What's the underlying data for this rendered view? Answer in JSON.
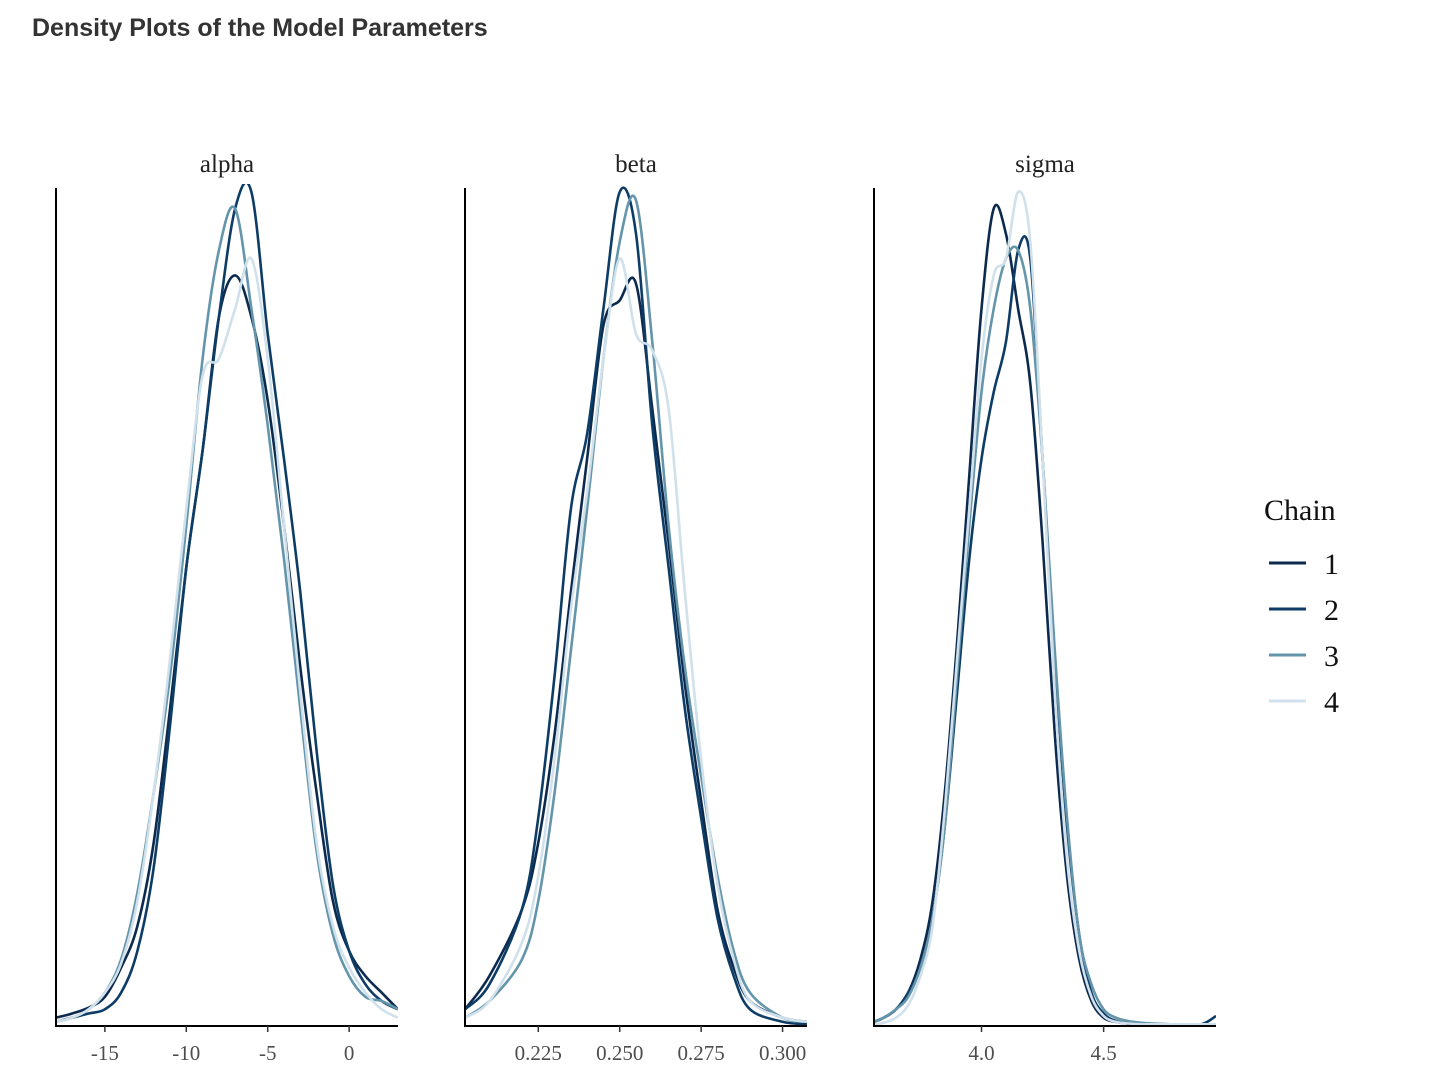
{
  "title": "Density Plots of the Model Parameters",
  "legend": {
    "title": "Chain",
    "placement": "right",
    "items": [
      {
        "label": "1",
        "color": "#0c2a4e"
      },
      {
        "label": "2",
        "color": "#0d3d66"
      },
      {
        "label": "3",
        "color": "#6495ab"
      },
      {
        "label": "4",
        "color": "#d1e1eb"
      }
    ]
  },
  "chart_data": [
    {
      "type": "line",
      "facet": "alpha",
      "xlim": [
        -18,
        3
      ],
      "xticks": [
        -15,
        -10,
        -5,
        0
      ],
      "xtick_labels": [
        "-15",
        "-10",
        "-5",
        "0"
      ],
      "ylim": [
        0,
        1
      ],
      "grid": false,
      "series": [
        {
          "name": "1",
          "x": [
            -18,
            -17,
            -16,
            -15,
            -14,
            -13,
            -12,
            -11,
            -10,
            -9,
            -8,
            -7,
            -6,
            -5,
            -4,
            -3,
            -2,
            -1,
            0,
            1,
            2,
            3
          ],
          "y": [
            0.01,
            0.015,
            0.022,
            0.035,
            0.07,
            0.12,
            0.22,
            0.38,
            0.55,
            0.69,
            0.85,
            0.9,
            0.85,
            0.75,
            0.6,
            0.43,
            0.28,
            0.15,
            0.09,
            0.06,
            0.04,
            0.02
          ]
        },
        {
          "name": "2",
          "x": [
            -18,
            -17,
            -16,
            -15,
            -14,
            -13,
            -12,
            -11,
            -10,
            -9,
            -8,
            -7,
            -6,
            -5,
            -4,
            -3,
            -2,
            -1,
            0,
            1,
            2,
            3
          ],
          "y": [
            0.005,
            0.01,
            0.015,
            0.02,
            0.04,
            0.09,
            0.19,
            0.36,
            0.55,
            0.69,
            0.85,
            0.98,
            1.0,
            0.83,
            0.68,
            0.52,
            0.33,
            0.17,
            0.09,
            0.05,
            0.03,
            0.02
          ]
        },
        {
          "name": "3",
          "x": [
            -18,
            -17,
            -16,
            -15,
            -14,
            -13,
            -12,
            -11,
            -10,
            -9,
            -8,
            -7,
            -6,
            -5,
            -4,
            -3,
            -2,
            -1,
            0,
            1,
            2,
            3
          ],
          "y": [
            0.005,
            0.01,
            0.02,
            0.04,
            0.08,
            0.16,
            0.28,
            0.42,
            0.6,
            0.8,
            0.93,
            0.98,
            0.86,
            0.72,
            0.56,
            0.38,
            0.21,
            0.11,
            0.06,
            0.035,
            0.03,
            0.02
          ]
        },
        {
          "name": "4",
          "x": [
            -18,
            -17,
            -16,
            -15,
            -14,
            -13,
            -12,
            -11,
            -10,
            -9,
            -8,
            -7,
            -6,
            -5,
            -4,
            -3,
            -2,
            -1,
            0,
            1,
            2,
            3
          ],
          "y": [
            0.005,
            0.01,
            0.02,
            0.04,
            0.075,
            0.15,
            0.28,
            0.44,
            0.62,
            0.78,
            0.8,
            0.86,
            0.92,
            0.8,
            0.6,
            0.4,
            0.22,
            0.12,
            0.07,
            0.04,
            0.02,
            0.01
          ]
        }
      ]
    },
    {
      "type": "line",
      "facet": "beta",
      "xlim": [
        0.2025,
        0.3075
      ],
      "xticks": [
        0.225,
        0.25,
        0.275,
        0.3
      ],
      "xtick_labels": [
        "0.225",
        "0.250",
        "0.275",
        "0.300"
      ],
      "ylim": [
        0,
        1
      ],
      "grid": false,
      "series": [
        {
          "name": "1",
          "x": [
            0.2025,
            0.21,
            0.22,
            0.225,
            0.23,
            0.235,
            0.24,
            0.245,
            0.25,
            0.255,
            0.26,
            0.265,
            0.27,
            0.275,
            0.28,
            0.285,
            0.29,
            0.3,
            0.3075
          ],
          "y": [
            0.02,
            0.06,
            0.14,
            0.22,
            0.35,
            0.52,
            0.68,
            0.84,
            0.87,
            0.89,
            0.74,
            0.58,
            0.41,
            0.27,
            0.14,
            0.07,
            0.03,
            0.01,
            0.005
          ]
        },
        {
          "name": "2",
          "x": [
            0.2025,
            0.21,
            0.22,
            0.225,
            0.23,
            0.235,
            0.24,
            0.245,
            0.25,
            0.255,
            0.26,
            0.265,
            0.27,
            0.275,
            0.28,
            0.285,
            0.29,
            0.3,
            0.3075
          ],
          "y": [
            0.02,
            0.05,
            0.14,
            0.25,
            0.42,
            0.62,
            0.71,
            0.86,
            1.0,
            0.95,
            0.72,
            0.55,
            0.38,
            0.25,
            0.13,
            0.06,
            0.02,
            0.005,
            0.002
          ]
        },
        {
          "name": "3",
          "x": [
            0.2025,
            0.21,
            0.22,
            0.225,
            0.23,
            0.235,
            0.24,
            0.245,
            0.25,
            0.255,
            0.26,
            0.265,
            0.27,
            0.275,
            0.28,
            0.285,
            0.29,
            0.3,
            0.3075
          ],
          "y": [
            0.01,
            0.03,
            0.08,
            0.15,
            0.28,
            0.45,
            0.62,
            0.8,
            0.94,
            0.99,
            0.82,
            0.6,
            0.43,
            0.3,
            0.18,
            0.09,
            0.04,
            0.01,
            0.005
          ]
        },
        {
          "name": "4",
          "x": [
            0.2025,
            0.21,
            0.22,
            0.225,
            0.23,
            0.235,
            0.24,
            0.245,
            0.25,
            0.255,
            0.26,
            0.265,
            0.27,
            0.275,
            0.28,
            0.285,
            0.29,
            0.3,
            0.3075
          ],
          "y": [
            0.01,
            0.03,
            0.1,
            0.18,
            0.32,
            0.5,
            0.64,
            0.8,
            0.92,
            0.83,
            0.81,
            0.74,
            0.52,
            0.32,
            0.17,
            0.08,
            0.03,
            0.01,
            0.005
          ]
        }
      ]
    },
    {
      "type": "line",
      "facet": "sigma",
      "xlim": [
        3.56,
        4.96
      ],
      "xticks": [
        4.0,
        4.5
      ],
      "xtick_labels": [
        "4.0",
        "4.5"
      ],
      "ylim": [
        0,
        1
      ],
      "grid": false,
      "series": [
        {
          "name": "1",
          "x": [
            3.56,
            3.6,
            3.65,
            3.7,
            3.75,
            3.8,
            3.85,
            3.9,
            3.95,
            4.0,
            4.05,
            4.1,
            4.15,
            4.2,
            4.25,
            4.3,
            4.35,
            4.4,
            4.45,
            4.5,
            4.55,
            4.6,
            4.65,
            4.7,
            4.8,
            4.9,
            4.96
          ],
          "y": [
            0.005,
            0.01,
            0.02,
            0.04,
            0.08,
            0.15,
            0.28,
            0.46,
            0.66,
            0.86,
            0.98,
            0.95,
            0.86,
            0.77,
            0.58,
            0.35,
            0.18,
            0.08,
            0.03,
            0.01,
            0.005,
            0.003,
            0.002,
            0.002,
            0.002,
            0.002,
            0.002
          ]
        },
        {
          "name": "2",
          "x": [
            3.56,
            3.6,
            3.65,
            3.7,
            3.75,
            3.8,
            3.85,
            3.9,
            3.95,
            4.0,
            4.05,
            4.1,
            4.15,
            4.2,
            4.25,
            4.3,
            4.35,
            4.4,
            4.45,
            4.5,
            4.55,
            4.6,
            4.65,
            4.7,
            4.8,
            4.9,
            4.96
          ],
          "y": [
            0.005,
            0.01,
            0.02,
            0.04,
            0.07,
            0.13,
            0.24,
            0.4,
            0.56,
            0.68,
            0.76,
            0.82,
            0.93,
            0.92,
            0.68,
            0.44,
            0.24,
            0.11,
            0.04,
            0.015,
            0.006,
            0.003,
            0.002,
            0.002,
            0.002,
            0.002,
            0.012
          ]
        },
        {
          "name": "3",
          "x": [
            3.56,
            3.6,
            3.65,
            3.7,
            3.75,
            3.8,
            3.85,
            3.9,
            3.95,
            4.0,
            4.05,
            4.1,
            4.15,
            4.2,
            4.25,
            4.3,
            4.35,
            4.4,
            4.45,
            4.5,
            4.55,
            4.6,
            4.65,
            4.7,
            4.8,
            4.9,
            4.96
          ],
          "y": [
            0.005,
            0.01,
            0.02,
            0.035,
            0.07,
            0.13,
            0.24,
            0.42,
            0.6,
            0.76,
            0.86,
            0.92,
            0.93,
            0.86,
            0.68,
            0.45,
            0.25,
            0.11,
            0.05,
            0.02,
            0.01,
            0.006,
            0.004,
            0.003,
            0.002,
            0.002,
            0.002
          ]
        },
        {
          "name": "4",
          "x": [
            3.56,
            3.6,
            3.65,
            3.7,
            3.75,
            3.8,
            3.85,
            3.9,
            3.95,
            4.0,
            4.05,
            4.1,
            4.15,
            4.2,
            4.25,
            4.3,
            4.35,
            4.4,
            4.45,
            4.5,
            4.55,
            4.6,
            4.65,
            4.7,
            4.8,
            4.9,
            4.96
          ],
          "y": [
            0.002,
            0.004,
            0.01,
            0.025,
            0.06,
            0.12,
            0.26,
            0.44,
            0.62,
            0.8,
            0.9,
            0.92,
            1.0,
            0.94,
            0.68,
            0.4,
            0.2,
            0.09,
            0.035,
            0.012,
            0.005,
            0.003,
            0.002,
            0.002,
            0.002,
            0.002,
            0.002
          ]
        }
      ]
    }
  ]
}
